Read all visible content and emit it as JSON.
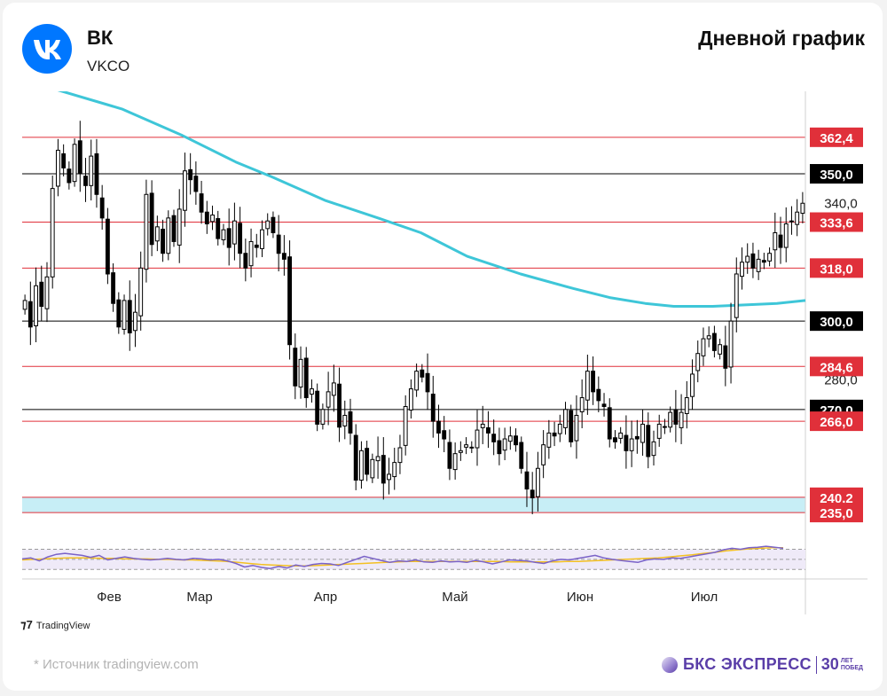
{
  "header": {
    "company_name": "ВК",
    "ticker": "VKCO",
    "chart_title": "Дневной график"
  },
  "footer": {
    "tv_label": "TradingView",
    "source": "*  Источник tradingview.com",
    "brand": "БКС ЭКСПРЕСС",
    "anniv_number": "30",
    "anniv_text_1": "ЛЕТ",
    "anniv_text_2": "ПОБЕД"
  },
  "colors": {
    "up_candle": "#ffffff",
    "down_candle": "#000000",
    "ma_line": "#3ec6d8",
    "red_level": "#e0303a",
    "black_level": "#000000",
    "support_zone": "#c7eef6",
    "rsi_line": "#7a62c8",
    "rsi_signal": "#f3c022",
    "brand": "#5a3ea8",
    "logo": "#0077ff"
  },
  "chart_data": {
    "type": "candlestick",
    "symbol": "VKCO",
    "x_labels": [
      "Фев",
      "Мар",
      "Апр",
      "Май",
      "Июн",
      "Июл"
    ],
    "ylim": [
      226,
      378
    ],
    "y_ticks": [
      "340,0",
      "280,0"
    ],
    "current_price": 340.0,
    "levels": [
      {
        "label": "362,4",
        "value": 362.4,
        "color": "red"
      },
      {
        "label": "350,0",
        "value": 350.0,
        "color": "black"
      },
      {
        "label": "333,6",
        "value": 333.6,
        "color": "red"
      },
      {
        "label": "318,0",
        "value": 318.0,
        "color": "red"
      },
      {
        "label": "300,0",
        "value": 300.0,
        "color": "black"
      },
      {
        "label": "284,6",
        "value": 284.6,
        "color": "red"
      },
      {
        "label": "270,0",
        "value": 270.0,
        "color": "black"
      },
      {
        "label": "266,0",
        "value": 266.0,
        "color": "red"
      },
      {
        "label": "240,2",
        "value": 240.2,
        "color": "red"
      },
      {
        "label": "235,0",
        "value": 235.0,
        "color": "red"
      }
    ],
    "support_zone": [
      235.0,
      240.2
    ],
    "price_path": [
      307,
      298,
      312,
      305,
      315,
      345,
      358,
      352,
      347,
      360,
      350,
      346,
      356,
      343,
      335,
      316,
      306,
      298,
      307,
      296,
      303,
      318,
      343,
      326,
      332,
      323,
      335,
      327,
      338,
      351,
      348,
      344,
      337,
      333,
      336,
      328,
      331,
      325,
      334,
      323,
      318,
      327,
      325,
      331,
      334,
      330,
      323,
      321,
      292,
      278,
      287,
      274,
      277,
      265,
      270,
      276,
      279,
      264,
      268,
      262,
      246,
      256,
      248,
      253,
      254,
      245,
      248,
      252,
      257,
      271,
      277,
      283,
      281,
      276,
      266,
      262,
      260,
      250,
      255,
      256,
      258,
      257,
      263,
      265,
      262,
      259,
      255,
      260,
      261,
      258,
      250,
      243,
      240,
      250,
      258,
      262,
      261,
      265,
      270,
      259,
      268,
      274,
      283,
      276,
      273,
      271,
      260,
      259,
      262,
      256,
      260,
      260,
      265,
      254,
      259,
      265,
      264,
      269,
      265,
      269,
      274,
      282,
      289,
      294,
      295,
      290,
      292,
      284,
      300,
      316,
      320,
      322,
      318,
      321,
      320,
      323,
      330,
      325,
      333,
      334,
      337,
      340
    ],
    "moving_average": [
      [
        0,
        382
      ],
      [
        28,
        372
      ],
      [
        45,
        363
      ],
      [
        60,
        354
      ],
      [
        70,
        349
      ],
      [
        85,
        341
      ],
      [
        100,
        335
      ],
      [
        112,
        330
      ],
      [
        125,
        322
      ],
      [
        140,
        316
      ],
      [
        155,
        311
      ],
      [
        165,
        308
      ],
      [
        175,
        306
      ],
      [
        183,
        305
      ],
      [
        194,
        305
      ],
      [
        212,
        306
      ],
      [
        220,
        307
      ]
    ],
    "rsi": [
      51,
      53,
      47,
      55,
      60,
      62,
      60,
      58,
      54,
      58,
      49,
      52,
      55,
      52,
      50,
      49,
      50,
      52,
      50,
      49,
      52,
      51,
      49,
      50,
      47,
      42,
      35,
      38,
      34,
      32,
      36,
      33,
      39,
      36,
      40,
      42,
      41,
      38,
      44,
      50,
      56,
      52,
      48,
      44,
      47,
      46,
      49,
      45,
      44,
      47,
      45,
      46,
      44,
      48,
      45,
      41,
      45,
      49,
      48,
      47,
      44,
      42,
      47,
      50,
      49,
      52,
      55,
      58,
      53,
      50,
      48,
      46,
      44,
      49,
      51,
      50,
      53,
      52,
      55,
      58,
      61,
      64,
      69,
      72,
      70,
      73,
      74,
      76,
      74,
      72
    ],
    "rsi_signal": [
      49,
      50,
      51,
      52,
      53,
      53,
      53,
      52,
      52,
      51,
      51,
      51,
      50,
      50,
      49,
      49,
      48,
      47,
      46,
      44,
      42,
      40,
      39,
      38,
      37,
      37,
      38,
      39,
      40,
      41,
      42,
      43,
      44,
      45,
      46,
      46,
      46,
      46,
      46,
      46,
      46,
      46,
      46,
      45,
      45,
      45,
      45,
      45,
      46,
      46,
      47,
      48,
      49,
      50,
      51,
      52,
      53,
      55,
      57,
      59,
      62,
      64,
      67,
      69,
      71,
      72,
      73,
      73
    ],
    "rsi_bands": [
      70,
      50,
      30
    ]
  }
}
